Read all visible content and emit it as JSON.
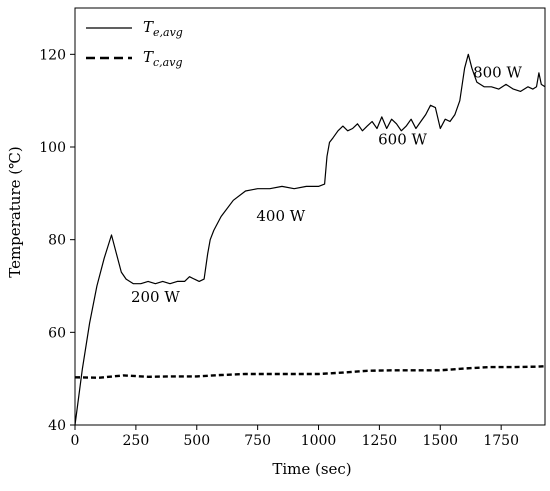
{
  "chart_data": {
    "type": "line",
    "xlabel": "Time (sec)",
    "ylabel": "Temperature (℃)",
    "xlim": [
      0,
      1930
    ],
    "ylim": [
      40,
      130
    ],
    "x_ticks": [
      0,
      250,
      500,
      750,
      1000,
      1250,
      1500,
      1750
    ],
    "y_ticks": [
      40,
      60,
      80,
      100,
      120
    ],
    "grid": false,
    "legend_position": "top-left",
    "series": [
      {
        "name": "T",
        "subscript": "e,avg",
        "line_style": "solid",
        "color": "#000000",
        "x": [
          0,
          30,
          60,
          90,
          120,
          150,
          170,
          190,
          210,
          240,
          270,
          300,
          330,
          360,
          390,
          420,
          450,
          470,
          490,
          510,
          530,
          545,
          555,
          570,
          600,
          650,
          700,
          750,
          800,
          850,
          900,
          950,
          1000,
          1025,
          1035,
          1045,
          1060,
          1080,
          1100,
          1120,
          1140,
          1160,
          1180,
          1200,
          1220,
          1240,
          1260,
          1280,
          1300,
          1320,
          1340,
          1360,
          1380,
          1400,
          1420,
          1440,
          1460,
          1480,
          1500,
          1520,
          1540,
          1560,
          1580,
          1600,
          1615,
          1630,
          1650,
          1680,
          1710,
          1740,
          1770,
          1800,
          1830,
          1860,
          1880,
          1895,
          1905,
          1915,
          1930
        ],
        "y": [
          40,
          52,
          62,
          70,
          76,
          81,
          77,
          73,
          71.5,
          70.5,
          70.5,
          71,
          70.5,
          71,
          70.5,
          71,
          71,
          72,
          71.5,
          71,
          71.5,
          77,
          80,
          82,
          85,
          88.5,
          90.5,
          91,
          91,
          91.5,
          91,
          91.5,
          91.5,
          92,
          98,
          101,
          102,
          103.5,
          104.5,
          103.5,
          104,
          105,
          103.5,
          104.5,
          105.5,
          104,
          106.5,
          104,
          106,
          105,
          103.5,
          104.5,
          106,
          104,
          105.5,
          107,
          109,
          108.5,
          104,
          106,
          105.5,
          107,
          110,
          117,
          120,
          117,
          114,
          113,
          113,
          112.5,
          113.5,
          112.5,
          112,
          113,
          112.5,
          113,
          116,
          113.5,
          113
        ]
      },
      {
        "name": "T",
        "subscript": "c,avg",
        "line_style": "dashed",
        "color": "#000000",
        "x": [
          0,
          100,
          200,
          300,
          400,
          500,
          600,
          700,
          800,
          900,
          1000,
          1100,
          1200,
          1300,
          1400,
          1500,
          1600,
          1700,
          1800,
          1900,
          1930
        ],
        "y": [
          50.3,
          50.2,
          50.7,
          50.4,
          50.5,
          50.5,
          50.8,
          51,
          51,
          51,
          51,
          51.3,
          51.7,
          51.8,
          51.8,
          51.8,
          52.2,
          52.5,
          52.5,
          52.6,
          52.7
        ]
      }
    ],
    "annotations": [
      {
        "text": "200 W",
        "x": 330,
        "y": 66.5
      },
      {
        "text": "400 W",
        "x": 845,
        "y": 84
      },
      {
        "text": "600 W",
        "x": 1345,
        "y": 100.5
      },
      {
        "text": "800 W",
        "x": 1735,
        "y": 115
      }
    ]
  }
}
